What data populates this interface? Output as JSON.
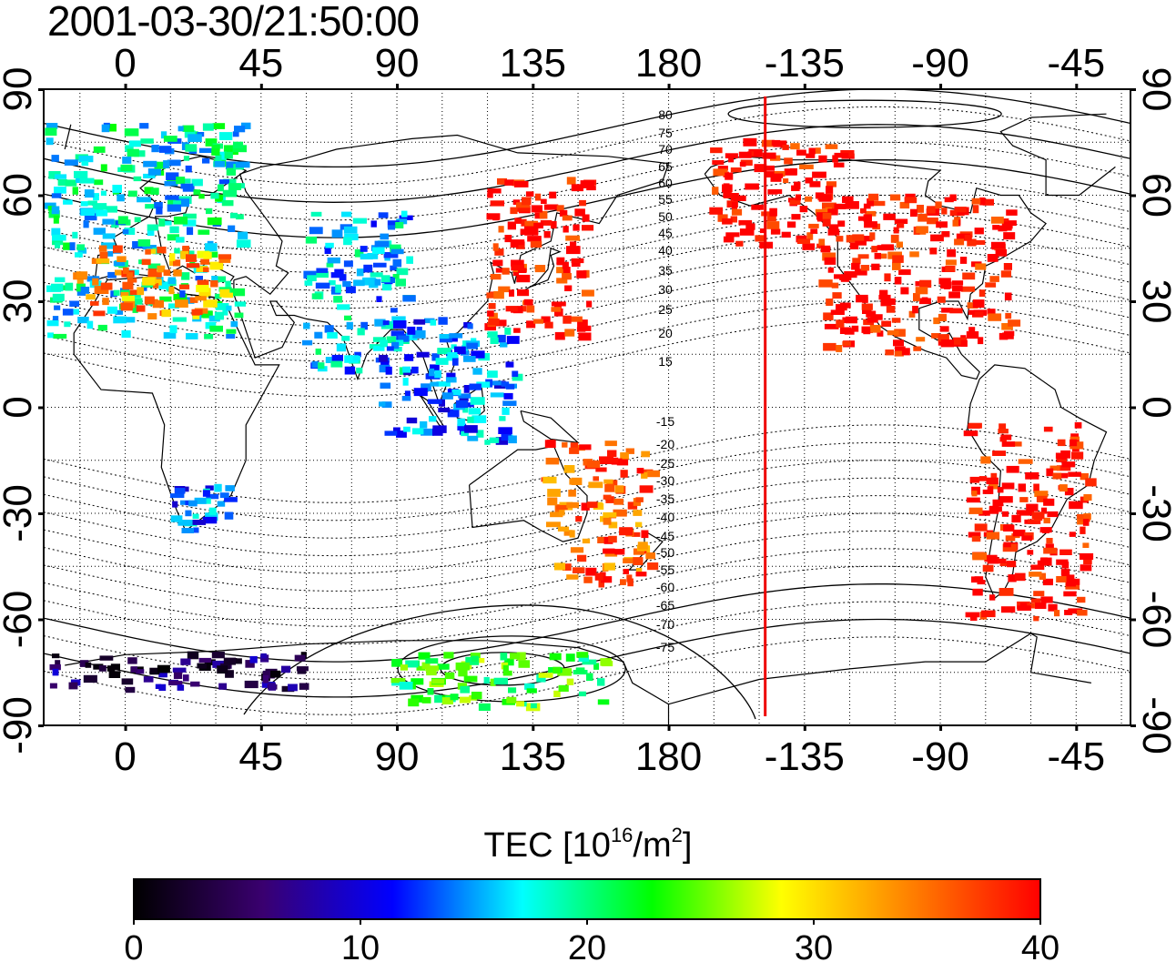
{
  "timestamp": "2001-03-30/21:50:00",
  "quantity": {
    "label_pre": "TEC  [10",
    "label_exp1": "16",
    "label_mid": "/m",
    "label_exp2": "2",
    "label_post": "]"
  },
  "map": {
    "lon_start": -27,
    "lon_end": 333,
    "lat_min": -90,
    "lat_max": 90,
    "x_ticks": [
      0,
      45,
      90,
      135,
      180,
      -135,
      -90,
      -45
    ],
    "y_ticks": [
      90,
      60,
      30,
      0,
      -30,
      -60,
      -90
    ],
    "grid": true,
    "marker_line_lon": -148,
    "marker_line_color": "#ee0000",
    "contour_labels": [
      "80",
      "75",
      "70",
      "65",
      "60",
      "55",
      "50",
      "45",
      "40",
      "35",
      "30",
      "25",
      "20",
      "15",
      "-15",
      "-20",
      "-25",
      "-30",
      "-35",
      "-40",
      "-45",
      "-50",
      "-55",
      "-60",
      "-65",
      "-70",
      "-75"
    ]
  },
  "colorbar": {
    "min": 0,
    "max": 40,
    "ticks": [
      "0",
      "10",
      "20",
      "30",
      "40"
    ],
    "colors": [
      "#000000",
      "#3a0070",
      "#0000ff",
      "#00ffff",
      "#00ff00",
      "#ffff00",
      "#ff8000",
      "#ff0000"
    ]
  },
  "chart_data": {
    "type": "heatmap",
    "title": "2001-03-30/21:50:00",
    "colorbar_label": "TEC [10^16/m^2]",
    "value_range": [
      0,
      40
    ],
    "regions": [
      {
        "lon": [
          -25,
          40
        ],
        "lat": [
          20,
          80
        ],
        "tec": 18
      },
      {
        "lon": [
          -15,
          35
        ],
        "lat": [
          25,
          45
        ],
        "tec": 33
      },
      {
        "lon": [
          60,
          95
        ],
        "lat": [
          10,
          55
        ],
        "tec": 16
      },
      {
        "lon": [
          120,
          155
        ],
        "lat": [
          20,
          65
        ],
        "tec": 40
      },
      {
        "lon": [
          85,
          130
        ],
        "lat": [
          -10,
          25
        ],
        "tec": 14
      },
      {
        "lon": [
          15,
          35
        ],
        "lat": [
          -35,
          -22
        ],
        "tec": 14
      },
      {
        "lon": [
          140,
          175
        ],
        "lat": [
          -50,
          -10
        ],
        "tec": 36
      },
      {
        "lon": [
          -165,
          -120
        ],
        "lat": [
          45,
          75
        ],
        "tec": 40
      },
      {
        "lon": [
          -130,
          -65
        ],
        "lat": [
          15,
          60
        ],
        "tec": 40
      },
      {
        "lon": [
          -80,
          -40
        ],
        "lat": [
          -60,
          -5
        ],
        "tec": 40
      },
      {
        "lon": [
          -25,
          60
        ],
        "lat": [
          -80,
          -70
        ],
        "tec": 5
      },
      {
        "lon": [
          90,
          160
        ],
        "lat": [
          -85,
          -70
        ],
        "tec": 23
      }
    ]
  }
}
